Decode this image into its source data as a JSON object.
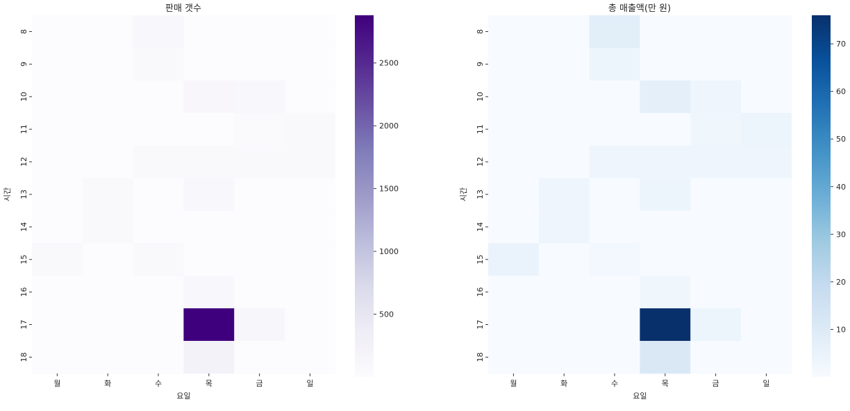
{
  "chart_data": [
    {
      "type": "heatmap",
      "title": "판매 갯수",
      "xlabel": "요일",
      "ylabel": "시간",
      "x_categories": [
        "월",
        "화",
        "수",
        "목",
        "금",
        "일"
      ],
      "y_categories": [
        "8",
        "9",
        "10",
        "11",
        "12",
        "13",
        "14",
        "15",
        "16",
        "17",
        "18"
      ],
      "values": [
        [
          0,
          0,
          100,
          0,
          0,
          0
        ],
        [
          0,
          0,
          90,
          0,
          0,
          0
        ],
        [
          0,
          0,
          0,
          120,
          100,
          0
        ],
        [
          0,
          0,
          0,
          0,
          60,
          70
        ],
        [
          0,
          0,
          70,
          70,
          70,
          70
        ],
        [
          0,
          80,
          0,
          110,
          0,
          0
        ],
        [
          0,
          80,
          0,
          0,
          0,
          0
        ],
        [
          90,
          0,
          90,
          0,
          0,
          0
        ],
        [
          0,
          0,
          0,
          110,
          0,
          0
        ],
        [
          0,
          0,
          0,
          2880,
          130,
          0
        ],
        [
          0,
          0,
          0,
          240,
          0,
          0
        ]
      ],
      "colormap": "Purples",
      "colorbar": {
        "min": 0,
        "max": 2880,
        "ticks": [
          500,
          1000,
          1500,
          2000,
          2500
        ],
        "low_color": "#fcfbfd",
        "high_color": "#3f007d"
      }
    },
    {
      "type": "heatmap",
      "title": "총 매출액(만 원)",
      "xlabel": "요일",
      "ylabel": "시간",
      "x_categories": [
        "월",
        "화",
        "수",
        "목",
        "금",
        "일"
      ],
      "y_categories": [
        "8",
        "9",
        "10",
        "11",
        "12",
        "13",
        "14",
        "15",
        "16",
        "17",
        "18"
      ],
      "values": [
        [
          0,
          0,
          8,
          0,
          0,
          0
        ],
        [
          0,
          0,
          4,
          0,
          0,
          0
        ],
        [
          0,
          0,
          0,
          7,
          3.5,
          0
        ],
        [
          0,
          0,
          0,
          0,
          3,
          4
        ],
        [
          0,
          0,
          3.5,
          3.5,
          3.5,
          3.5
        ],
        [
          0,
          3.5,
          0,
          4,
          0,
          0
        ],
        [
          0,
          3.5,
          0,
          0,
          0,
          0
        ],
        [
          5,
          0,
          2,
          0,
          0,
          0
        ],
        [
          0,
          0,
          0,
          3,
          0,
          0
        ],
        [
          0,
          0,
          0,
          76,
          4,
          0
        ],
        [
          0,
          0,
          0,
          11,
          0,
          0
        ]
      ],
      "colormap": "Blues",
      "colorbar": {
        "min": 0,
        "max": 76,
        "ticks": [
          10,
          20,
          30,
          40,
          50,
          60,
          70
        ],
        "low_color": "#f7fbff",
        "high_color": "#08306b"
      }
    }
  ]
}
